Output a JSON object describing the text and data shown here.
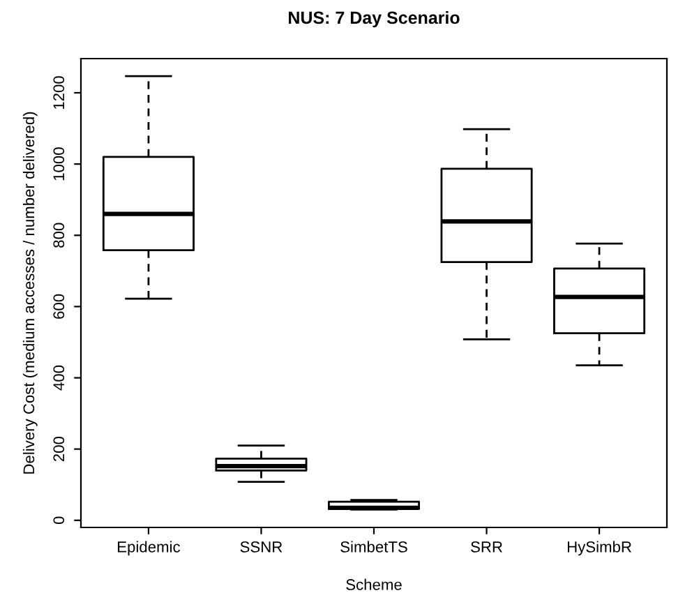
{
  "chart_data": {
    "type": "box",
    "title": "NUS: 7 Day Scenario",
    "xlabel": "Scheme",
    "ylabel": "Delivery Cost (medium accesses / number delivered)",
    "categories": [
      "Epidemic",
      "SSNR",
      "SimbetTS",
      "SRR",
      "HySimbR"
    ],
    "boxes": [
      {
        "low": 622,
        "q1": 758,
        "median": 860,
        "q3": 1020,
        "high": 1247
      },
      {
        "low": 108,
        "q1": 140,
        "median": 152,
        "q3": 173,
        "high": 210
      },
      {
        "low": 30,
        "q1": 32,
        "median": 35,
        "q3": 52,
        "high": 57
      },
      {
        "low": 508,
        "q1": 725,
        "median": 839,
        "q3": 987,
        "high": 1098
      },
      {
        "low": 435,
        "q1": 525,
        "median": 627,
        "q3": 707,
        "high": 777
      }
    ],
    "ylim": [
      -20,
      1296
    ],
    "yticks": [
      0,
      200,
      400,
      600,
      800,
      1000,
      1200
    ]
  }
}
